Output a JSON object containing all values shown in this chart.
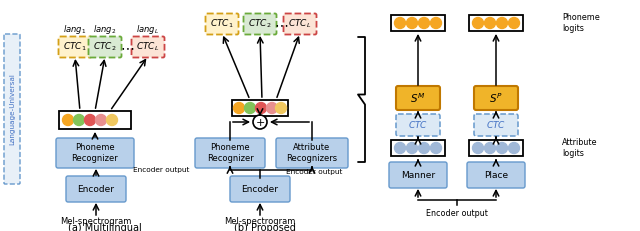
{
  "fig_width": 6.4,
  "fig_height": 2.31,
  "dpi": 100,
  "bg_color": "#ffffff",
  "colors": {
    "encoder_fill": "#b8d0ea",
    "encoder_edge": "#6699cc",
    "node_orange": "#f5a623",
    "node_green": "#82c45a",
    "node_red": "#e05555",
    "node_pink": "#e89090",
    "node_yellow": "#f0c860",
    "node_blue": "#a0b8d8",
    "ctc_orange_fill": "#fff2cc",
    "ctc_orange_edge": "#d4a017",
    "ctc_green_fill": "#d9ead3",
    "ctc_green_edge": "#6aaa3a",
    "ctc_red_fill": "#fce4d6",
    "ctc_red_edge": "#cc4444",
    "ctc_gold_fill": "#f0b429",
    "ctc_gold_edge": "#c07800",
    "ctc_blue_fill": "#dce9f5",
    "ctc_blue_edge": "#6699cc",
    "lang_univ_fill": "#e8f0f8",
    "lang_univ_edge": "#6699cc",
    "black": "#000000",
    "arrow": "#000000"
  },
  "subtitle_a": "(a) Multilingual",
  "subtitle_b": "(b) Proposed",
  "label_encoder_output_a": "Encoder output",
  "label_encoder_output_b": "Encoder output",
  "label_encoder_output_c": "Encoder output",
  "label_mel_a": "Mel-spectrogram",
  "label_mel_b": "Mel-spectrogram",
  "label_phoneme_logits": "Phoneme\nlogits",
  "label_attribute_logits": "Attribute\nlogits",
  "label_lang_universal": "Language-Universal"
}
